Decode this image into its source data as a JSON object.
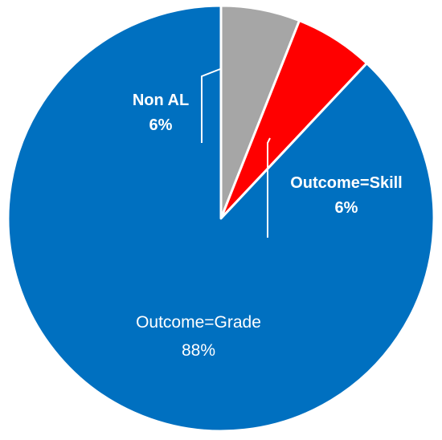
{
  "chart_data": {
    "type": "pie",
    "start_angle_deg": 0,
    "direction": "clockwise",
    "slices": [
      {
        "label": "Non AL",
        "value_label": "6%",
        "value": 6,
        "color": "#a6a6a6"
      },
      {
        "label": "Outcome=Skill",
        "value_label": "6%",
        "value": 6,
        "color": "#ff0000"
      },
      {
        "label": "Outcome=Grade",
        "value_label": "88%",
        "value": 88,
        "color": "#0070c0"
      }
    ],
    "title": "",
    "legend": "none"
  }
}
